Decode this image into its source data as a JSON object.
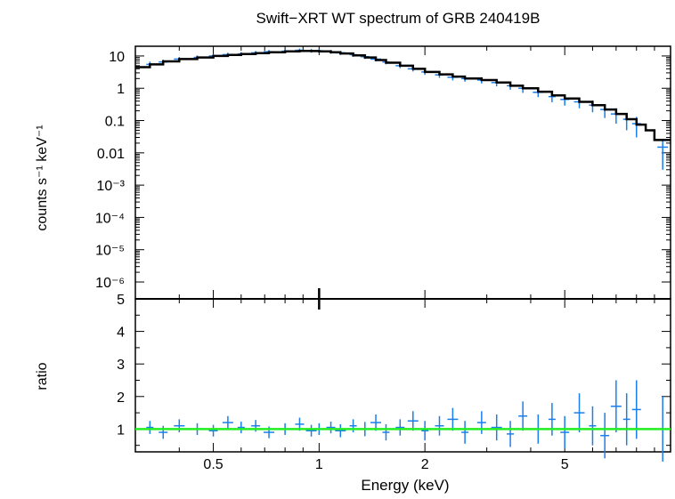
{
  "chart_data": {
    "type": "scatter",
    "title": "Swift−XRT WT spectrum of GRB 240419B",
    "xlabel": "Energy (keV)",
    "x_scale": "log",
    "xlim": [
      0.3,
      10
    ],
    "x_ticks": [
      "0.5",
      "1",
      "2",
      "5"
    ],
    "colors": {
      "data": "#1a7fea",
      "model": "#000000",
      "unity": "#22ee22",
      "axis": "#000000"
    },
    "panels": [
      {
        "name": "spectrum",
        "ylabel": "counts s⁻¹ keV⁻¹",
        "y_scale": "log",
        "ylim": [
          3e-07,
          20
        ],
        "y_ticks": [
          "10",
          "1",
          "0.1",
          "0.01",
          "10⁻³",
          "10⁻⁴",
          "10⁻⁵",
          "10⁻⁶"
        ],
        "series": [
          {
            "kind": "data-with-errorbars",
            "x": [
              0.33,
              0.36,
              0.4,
              0.45,
              0.5,
              0.55,
              0.6,
              0.66,
              0.72,
              0.8,
              0.88,
              0.95,
              1.0,
              1.08,
              1.15,
              1.25,
              1.35,
              1.45,
              1.55,
              1.7,
              1.85,
              2.0,
              2.2,
              2.4,
              2.6,
              2.9,
              3.2,
              3.5,
              3.8,
              4.2,
              4.6,
              5.0,
              5.5,
              6.0,
              6.5,
              7.0,
              7.5,
              8.0,
              9.5
            ],
            "y": [
              5.5,
              6.5,
              8.0,
              9.0,
              10.0,
              11.0,
              11.5,
              12.5,
              13.5,
              14.0,
              15.0,
              14.5,
              14.5,
              13.5,
              12.5,
              11.0,
              9.5,
              8.0,
              6.5,
              5.0,
              4.0,
              3.2,
              2.6,
              2.2,
              2.0,
              1.8,
              1.5,
              1.2,
              1.0,
              0.75,
              0.55,
              0.45,
              0.38,
              0.3,
              0.22,
              0.16,
              0.11,
              0.08,
              0.015
            ],
            "yerr": [
              1.2,
              1.2,
              1.3,
              1.4,
              1.5,
              1.6,
              1.6,
              1.7,
              1.8,
              1.8,
              1.9,
              1.9,
              1.9,
              1.8,
              1.7,
              1.6,
              1.4,
              1.2,
              1.0,
              0.8,
              0.7,
              0.6,
              0.5,
              0.45,
              0.4,
              0.4,
              0.35,
              0.3,
              0.28,
              0.22,
              0.18,
              0.16,
              0.14,
              0.12,
              0.1,
              0.08,
              0.06,
              0.05,
              0.012
            ]
          },
          {
            "kind": "model-step",
            "x": [
              0.3,
              0.33,
              0.36,
              0.4,
              0.45,
              0.5,
              0.55,
              0.6,
              0.66,
              0.72,
              0.8,
              0.88,
              0.95,
              1.0,
              1.08,
              1.15,
              1.25,
              1.35,
              1.45,
              1.55,
              1.7,
              1.85,
              2.0,
              2.2,
              2.4,
              2.6,
              2.9,
              3.2,
              3.5,
              3.8,
              4.2,
              4.6,
              5.0,
              5.5,
              6.0,
              6.5,
              7.0,
              7.5,
              8.0,
              8.5,
              9.0,
              10.0
            ],
            "y": [
              4.5,
              5.5,
              6.8,
              8.0,
              9.0,
              10.0,
              10.8,
              11.5,
              12.3,
              13.0,
              13.8,
              14.3,
              14.2,
              13.8,
              13.0,
              12.0,
              10.5,
              9.0,
              7.5,
              6.2,
              5.0,
              4.0,
              3.2,
              2.7,
              2.3,
              2.0,
              1.8,
              1.5,
              1.2,
              1.0,
              0.78,
              0.6,
              0.48,
              0.38,
              0.3,
              0.22,
              0.16,
              0.11,
              0.075,
              0.05,
              0.025,
              0.025
            ]
          }
        ]
      },
      {
        "name": "ratio",
        "ylabel": "ratio",
        "y_scale": "linear",
        "ylim": [
          0.3,
          5
        ],
        "y_ticks": [
          "1",
          "2",
          "3",
          "4",
          "5"
        ],
        "reference_line": 1,
        "series": [
          {
            "kind": "data-with-errorbars",
            "x": [
              0.33,
              0.36,
              0.4,
              0.45,
              0.5,
              0.55,
              0.6,
              0.66,
              0.72,
              0.8,
              0.88,
              0.95,
              1.0,
              1.08,
              1.15,
              1.25,
              1.35,
              1.45,
              1.55,
              1.7,
              1.85,
              2.0,
              2.2,
              2.4,
              2.6,
              2.9,
              3.2,
              3.5,
              3.8,
              4.2,
              4.6,
              5.0,
              5.5,
              6.0,
              6.5,
              7.0,
              7.5,
              8.0,
              9.5
            ],
            "y": [
              1.05,
              0.9,
              1.1,
              1.0,
              0.95,
              1.2,
              1.05,
              1.1,
              0.9,
              1.0,
              1.15,
              0.95,
              1.0,
              1.05,
              0.95,
              1.1,
              1.0,
              1.2,
              0.9,
              1.05,
              1.25,
              0.95,
              1.1,
              1.3,
              0.9,
              1.2,
              1.05,
              0.85,
              1.4,
              1.0,
              1.3,
              0.9,
              1.5,
              1.1,
              0.8,
              1.7,
              1.3,
              1.6,
              1.0
            ],
            "yerr": [
              0.2,
              0.2,
              0.2,
              0.18,
              0.18,
              0.2,
              0.18,
              0.18,
              0.18,
              0.18,
              0.2,
              0.18,
              0.18,
              0.18,
              0.2,
              0.2,
              0.22,
              0.25,
              0.25,
              0.25,
              0.3,
              0.3,
              0.3,
              0.35,
              0.35,
              0.35,
              0.4,
              0.4,
              0.45,
              0.45,
              0.5,
              0.5,
              0.6,
              0.6,
              0.7,
              0.8,
              0.8,
              0.9,
              1.0
            ]
          }
        ]
      }
    ]
  }
}
